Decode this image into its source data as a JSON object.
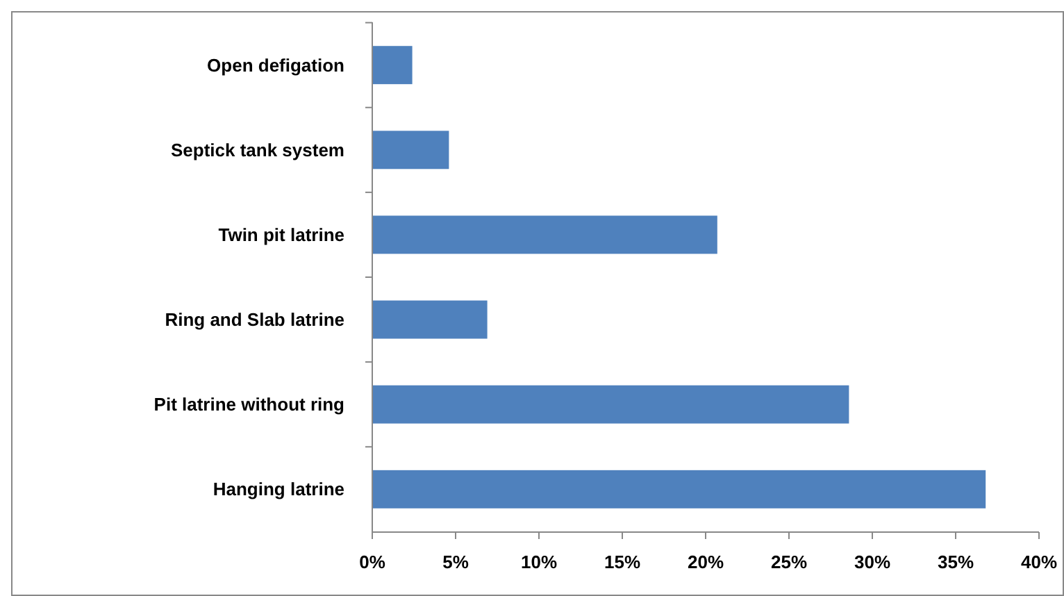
{
  "chart_data": {
    "type": "bar",
    "orientation": "horizontal",
    "categories": [
      "Open defigation",
      "Septick tank system",
      "Twin pit latrine",
      "Ring and Slab latrine",
      "Pit latrine without ring",
      "Hanging latrine"
    ],
    "values": [
      2.4,
      4.6,
      20.7,
      6.9,
      28.6,
      36.8
    ],
    "color": "#4f81bd",
    "xlim": [
      0,
      40
    ],
    "xticks": [
      {
        "value": 0,
        "label": "0%"
      },
      {
        "value": 5,
        "label": "5%"
      },
      {
        "value": 10,
        "label": "10%"
      },
      {
        "value": 15,
        "label": "15%"
      },
      {
        "value": 20,
        "label": "20%"
      },
      {
        "value": 25,
        "label": "25%"
      },
      {
        "value": 30,
        "label": "30%"
      },
      {
        "value": 35,
        "label": "35%"
      },
      {
        "value": 40,
        "label": "40%"
      }
    ],
    "grid": false
  }
}
